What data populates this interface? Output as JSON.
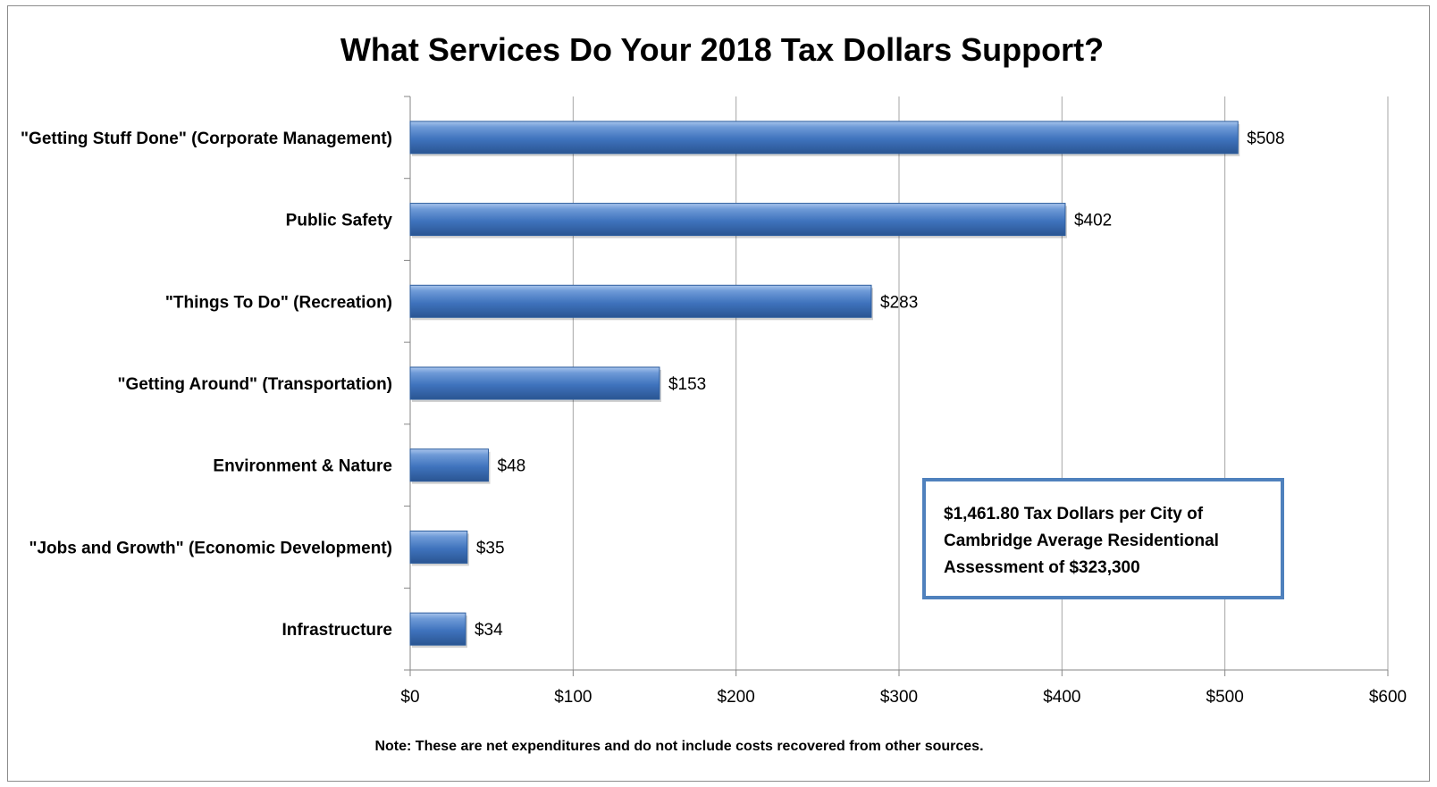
{
  "chart_data": {
    "type": "bar",
    "orientation": "horizontal",
    "title": "What Services Do Your 2018 Tax Dollars Support?",
    "categories": [
      "\"Getting Stuff Done\" (Corporate Management)",
      "Public Safety",
      "\"Things To Do\" (Recreation)",
      "\"Getting Around\" (Transportation)",
      "Environment & Nature",
      "\"Jobs and Growth\" (Economic Development)",
      "Infrastructure"
    ],
    "values": [
      508,
      402,
      283,
      153,
      48,
      35,
      34
    ],
    "data_labels": [
      "$508",
      "$402",
      "$283",
      "$153",
      "$48",
      "$35",
      "$34"
    ],
    "xlim": [
      0,
      600
    ],
    "x_ticks": [
      0,
      100,
      200,
      300,
      400,
      500,
      600
    ],
    "x_tick_labels": [
      "$0",
      "$100",
      "$200",
      "$300",
      "$400",
      "$500",
      "$600"
    ],
    "grid": true,
    "bar_color": "#4f81bd",
    "note": "Note: These are net expenditures and do not include costs recovered from other sources.",
    "annotation": "$1,461.80 Tax Dollars per City of Cambridge Average Residentional Assessment of $323,300"
  }
}
